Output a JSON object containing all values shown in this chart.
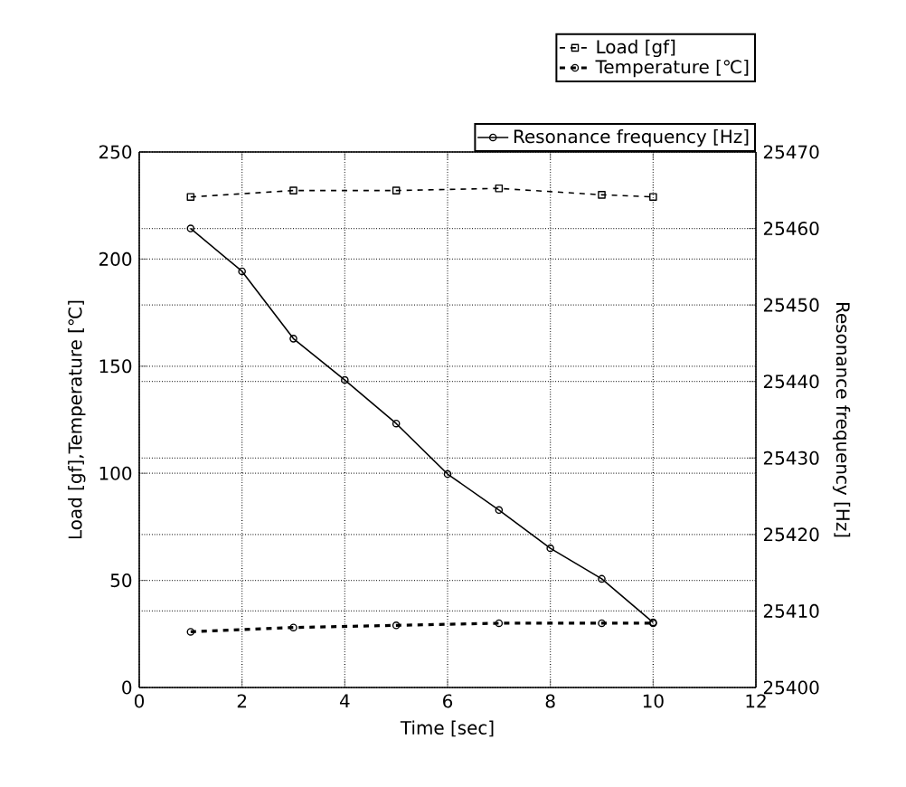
{
  "chart_data": {
    "type": "line",
    "xlabel": "Time [sec]",
    "ylabel": "Load [gf],Temperature [℃]",
    "y2label": "Resonance frequency [Hz]",
    "xlim": [
      0,
      12
    ],
    "xticks": [
      0,
      2,
      4,
      6,
      8,
      10,
      12
    ],
    "ylim": [
      0,
      250
    ],
    "yticks": [
      0,
      50,
      100,
      150,
      200,
      250
    ],
    "y2lim": [
      25400,
      25470
    ],
    "y2ticks": [
      25400,
      25410,
      25420,
      25430,
      25440,
      25450,
      25460,
      25470
    ],
    "grid": true,
    "legend": "top right",
    "marker": "circle",
    "series": [
      {
        "name": "Load [gf]",
        "color": "#000000",
        "marker": "square",
        "line_style": "dashed",
        "x": [
          1,
          3,
          5,
          7,
          9,
          10
        ],
        "values": [
          229,
          232,
          232,
          233,
          230,
          229
        ]
      },
      {
        "name": "Temperature [℃]",
        "color": "#000000",
        "line_style": "dashed",
        "x": [
          1,
          3,
          5,
          7,
          9,
          10
        ],
        "values": [
          26,
          28,
          29,
          30,
          30,
          30
        ]
      },
      {
        "name": "Resonance frequency [Hz]",
        "color": "#000000",
        "line_style": "solid",
        "axis": "y2",
        "x": [
          1,
          2,
          3,
          4,
          5,
          6,
          7,
          8,
          9,
          10
        ],
        "values": [
          25460,
          25454.4,
          25445.6,
          25440.2,
          25434.5,
          25427.9,
          25423.2,
          25418.2,
          25414.2,
          25408.5
        ]
      }
    ]
  }
}
